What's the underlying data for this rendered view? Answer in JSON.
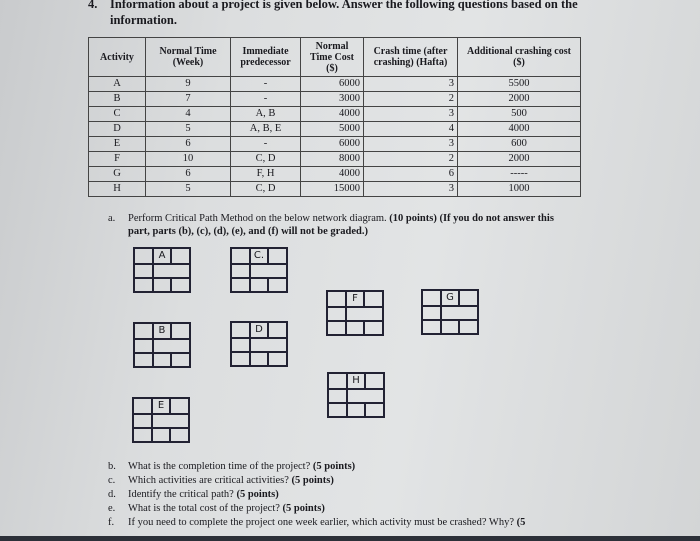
{
  "question": {
    "number": "4.",
    "text": "Information about a project is given below. Answer the following questions based on the information."
  },
  "table": {
    "headers": [
      "Activity",
      "Normal Time (Week)",
      "Immediate predecessor",
      "Normal Time Cost ($)",
      "Crash time (after crashing) (Hafta)",
      "Additional crashing cost ($)"
    ],
    "rows": [
      [
        "A",
        "9",
        "-",
        "6000",
        "3",
        "5500"
      ],
      [
        "B",
        "7",
        "-",
        "3000",
        "2",
        "2000"
      ],
      [
        "C",
        "4",
        "A, B",
        "4000",
        "3",
        "500"
      ],
      [
        "D",
        "5",
        "A, B, E",
        "5000",
        "4",
        "4000"
      ],
      [
        "E",
        "6",
        "-",
        "6000",
        "3",
        "600"
      ],
      [
        "F",
        "10",
        "C, D",
        "8000",
        "2",
        "2000"
      ],
      [
        "G",
        "6",
        "F, H",
        "4000",
        "6",
        "-----"
      ],
      [
        "H",
        "5",
        "C, D",
        "15000",
        "3",
        "1000"
      ]
    ]
  },
  "part_a": {
    "label": "a.",
    "text": "Perform Critical Path Method on the below network diagram.",
    "bold": "(10 points) (If you do not answer this part, parts (b), (c), (d), (e), and (f) will not be graded.)"
  },
  "nodes": [
    "A",
    "C.",
    "F",
    "G",
    "B",
    "D",
    "H",
    "E"
  ],
  "questions": [
    {
      "label": "b.",
      "text": "What is the completion time of the project?",
      "points": "(5 points)"
    },
    {
      "label": "c.",
      "text": "Which activities are critical activities?",
      "points": "(5 points)"
    },
    {
      "label": "d.",
      "text": "Identify the critical path?",
      "points": "(5 points)"
    },
    {
      "label": "e.",
      "text": "What is the total cost of the project?",
      "points": "(5 points)"
    },
    {
      "label": "f.",
      "text": "If you need to complete the project one week earlier, which activity must be crashed? Why?",
      "points": "(5"
    }
  ]
}
